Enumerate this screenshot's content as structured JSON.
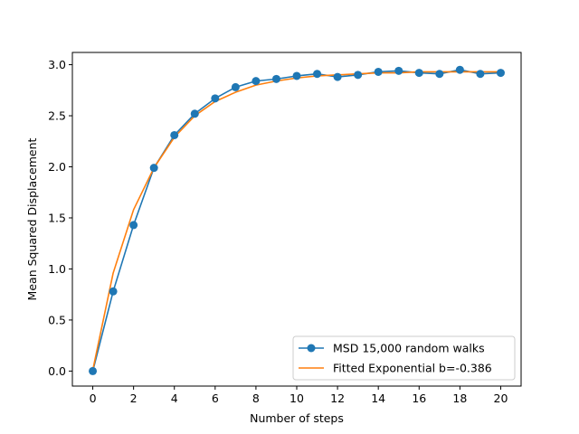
{
  "chart_data": {
    "type": "line",
    "title": "",
    "xlabel": "Number of steps",
    "ylabel": "Mean Squared Displacement",
    "xlim": [
      -1,
      21
    ],
    "ylim": [
      -0.147,
      3.12
    ],
    "xticks": [
      0,
      2,
      4,
      6,
      8,
      10,
      12,
      14,
      16,
      18,
      20
    ],
    "yticks": [
      0.0,
      0.5,
      1.0,
      1.5,
      2.0,
      2.5,
      3.0
    ],
    "xtick_labels": [
      "0",
      "2",
      "4",
      "6",
      "8",
      "10",
      "12",
      "14",
      "16",
      "18",
      "20"
    ],
    "ytick_labels": [
      "0.0",
      "0.5",
      "1.0",
      "1.5",
      "2.0",
      "2.5",
      "3.0"
    ],
    "grid": false,
    "legend_position": "lower-right",
    "series": [
      {
        "name": "MSD 15,000 random walks",
        "color": "#1f77b4",
        "marker": "circle",
        "x": [
          0,
          1,
          2,
          3,
          4,
          5,
          6,
          7,
          8,
          9,
          10,
          11,
          12,
          13,
          14,
          15,
          16,
          17,
          18,
          19,
          20
        ],
        "y": [
          0.0,
          0.78,
          1.43,
          1.99,
          2.31,
          2.52,
          2.67,
          2.78,
          2.84,
          2.86,
          2.89,
          2.91,
          2.88,
          2.9,
          2.93,
          2.94,
          2.92,
          2.91,
          2.95,
          2.91,
          2.92
        ]
      },
      {
        "name": "Fitted Exponential b=-0.386",
        "color": "#ff7f0e",
        "marker": "none",
        "x": [
          0,
          1,
          2,
          3,
          4,
          5,
          6,
          7,
          8,
          9,
          10,
          11,
          12,
          13,
          14,
          15,
          16,
          17,
          18,
          19,
          20
        ],
        "y": [
          0.01,
          0.96,
          1.58,
          1.99,
          2.29,
          2.5,
          2.64,
          2.73,
          2.8,
          2.84,
          2.87,
          2.89,
          2.9,
          2.91,
          2.92,
          2.92,
          2.93,
          2.93,
          2.93,
          2.93,
          2.93
        ]
      }
    ]
  }
}
